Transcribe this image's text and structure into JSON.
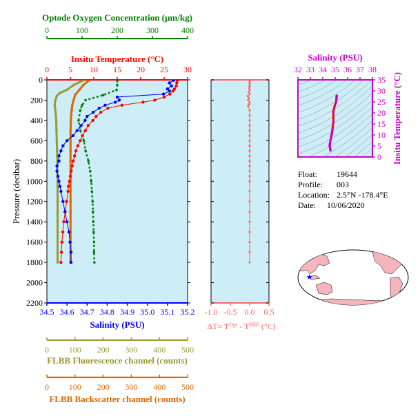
{
  "colors": {
    "panel_bg": "#cdeef7",
    "salinity": "#0000ff",
    "temperature": "#ff0000",
    "oxygen": "#008000",
    "fluorescence": "#999933",
    "backscatter": "#dd6600",
    "delta_t": "#ff6666",
    "ts_axis": "#cc00cc",
    "ts_line": "#ff0000",
    "land": "#f4b6bc",
    "float_marker": "#0000ff"
  },
  "info": {
    "float_label": "Float:",
    "float_value": "19644",
    "profile_label": "Profile:",
    "profile_value": "003",
    "location_label": "Location:",
    "location_value": "2.5°N  -178.4°E",
    "date_label": "Date:",
    "date_value": "10/06/2020"
  },
  "chart_data": [
    {
      "type": "line",
      "title": "",
      "ylabel": "Pressure (decibar)",
      "ylim": [
        2200,
        0
      ],
      "yticks": [
        "0",
        "200",
        "400",
        "600",
        "800",
        "1000",
        "1200",
        "1400",
        "1600",
        "1800",
        "2000",
        "2200"
      ],
      "axes": {
        "salinity": {
          "label": "Salinity (PSU)",
          "range": [
            34.5,
            35.2
          ],
          "ticks": [
            "34.5",
            "34.6",
            "34.7",
            "34.8",
            "34.9",
            "35.0",
            "35.1",
            "35.2"
          ]
        },
        "temperature": {
          "label": "Insitu Temperature (°C)",
          "range": [
            0,
            30
          ],
          "ticks": [
            "0",
            "5",
            "10",
            "15",
            "20",
            "25",
            "30"
          ]
        },
        "oxygen": {
          "label": "Optode Oxygen Concentration (µm/kg)",
          "range": [
            0,
            400
          ],
          "ticks": [
            "0",
            "100",
            "200",
            "300",
            "400"
          ]
        },
        "fluorescence": {
          "label": "FLBB Fluorescence channel (counts)",
          "range": [
            0,
            500
          ],
          "ticks": [
            "0",
            "100",
            "200",
            "300",
            "400",
            "500"
          ]
        },
        "backscatter": {
          "label": "FLBB Backscatter channel (counts)",
          "range": [
            0,
            500
          ],
          "ticks": [
            "0",
            "100",
            "200",
            "300",
            "400",
            "500"
          ]
        }
      },
      "series": [
        {
          "key": "salinity",
          "pressure": [
            5,
            30,
            60,
            90,
            110,
            140,
            170,
            200,
            220,
            250,
            280,
            320,
            360,
            400,
            450,
            500,
            550,
            600,
            650,
            700,
            750,
            800,
            850,
            900,
            950,
            1000,
            1050,
            1100,
            1200,
            1300,
            1400,
            1500,
            1600,
            1700,
            1800
          ],
          "values": [
            35.13,
            35.11,
            35.12,
            35.1,
            35.11,
            35.08,
            34.85,
            34.86,
            34.84,
            34.79,
            34.76,
            34.73,
            34.7,
            34.69,
            34.67,
            34.65,
            34.63,
            34.6,
            34.58,
            34.57,
            34.56,
            34.56,
            34.55,
            34.55,
            34.555,
            34.56,
            34.565,
            34.57,
            34.58,
            34.59,
            34.6,
            34.61,
            34.615,
            34.62,
            34.62
          ]
        },
        {
          "key": "temperature",
          "pressure": [
            5,
            30,
            60,
            90,
            110,
            140,
            170,
            200,
            220,
            250,
            280,
            320,
            360,
            400,
            450,
            500,
            550,
            600,
            650,
            700,
            750,
            800,
            850,
            900,
            950,
            1000,
            1050,
            1100,
            1200,
            1300,
            1400,
            1500,
            1600,
            1700,
            1800
          ],
          "values": [
            27.8,
            27.7,
            27.6,
            27.2,
            26.9,
            26.2,
            25.0,
            23.0,
            20.5,
            16.0,
            13.0,
            11.5,
            10.5,
            9.8,
            8.8,
            8.2,
            7.6,
            7.1,
            6.6,
            6.2,
            5.9,
            5.6,
            5.4,
            5.2,
            5.0,
            4.8,
            4.6,
            4.5,
            4.2,
            3.9,
            3.6,
            3.4,
            3.2,
            3.1,
            3.0
          ]
        },
        {
          "key": "oxygen",
          "pressure": [
            5,
            50,
            100,
            150,
            200,
            250,
            300,
            400,
            500,
            600,
            700,
            800,
            900,
            1000,
            1100,
            1200,
            1300,
            1400,
            1500,
            1600,
            1700,
            1800
          ],
          "values": [
            200,
            200,
            198,
            160,
            110,
            100,
            95,
            90,
            95,
            105,
            110,
            118,
            123,
            126,
            128,
            130,
            131,
            132,
            133,
            134,
            134,
            135
          ]
        },
        {
          "key": "fluorescence",
          "pressure": [
            5,
            50,
            100,
            130,
            160,
            200,
            250,
            300,
            350,
            400,
            500,
            600,
            700,
            800,
            900,
            1000,
            1100,
            1200,
            1300,
            1400,
            1500,
            1600,
            1700,
            1800
          ],
          "values": [
            130,
            95,
            70,
            45,
            35,
            30,
            28,
            30,
            32,
            33,
            34,
            35,
            36,
            37,
            37,
            38,
            38,
            38,
            38,
            38,
            38,
            38,
            38,
            38
          ]
        },
        {
          "key": "backscatter",
          "pressure": [
            5,
            50,
            100,
            150,
            200,
            250,
            300,
            350,
            400,
            500,
            600,
            700,
            800,
            900,
            1000,
            1100,
            1200,
            1300,
            1400,
            1500,
            1600,
            1700,
            1800
          ],
          "values": [
            150,
            130,
            115,
            100,
            95,
            90,
            88,
            86,
            85,
            84,
            84,
            84,
            84,
            84,
            84,
            84,
            84,
            84,
            84,
            84,
            84,
            84,
            84
          ]
        }
      ]
    },
    {
      "type": "scatter",
      "title": "",
      "xlabel": "ΔT= T^Opt - T^SBE (°C)",
      "xlabel_parts": {
        "prefix": "ΔT= T",
        "sup1": "Opt",
        "mid": " - T",
        "sup2": "SBE",
        "suffix": " (°C)"
      },
      "xlim": [
        -1.0,
        0.5
      ],
      "xticks": [
        "-1.0",
        "-0.5",
        "0.0",
        "0.5"
      ],
      "ylim": [
        2200,
        0
      ],
      "series": [
        {
          "name": "",
          "pressure": [
            5,
            20,
            40,
            60,
            80,
            100,
            120,
            140,
            160,
            180,
            200,
            220,
            240,
            260,
            300,
            350,
            400,
            450,
            500,
            550,
            600,
            650,
            700,
            750,
            800,
            850,
            900,
            950,
            1000,
            1100,
            1200,
            1300,
            1400,
            1500,
            1600,
            1700,
            1800
          ],
          "values": [
            0.0,
            0.0,
            0.0,
            0.0,
            -0.01,
            0.0,
            -0.02,
            0.0,
            -0.05,
            -0.02,
            -0.04,
            0.0,
            -0.01,
            -0.04,
            0.0,
            0.0,
            0.0,
            0.0,
            0.0,
            0.0,
            0.0,
            0.0,
            0.0,
            0.0,
            0.0,
            0.0,
            0.0,
            0.0,
            0.0,
            0.0,
            0.0,
            0.0,
            0.0,
            0.0,
            0.0,
            0.0,
            0.0
          ]
        }
      ]
    },
    {
      "type": "line",
      "title": "",
      "xlabel": "Salinity (PSU)",
      "ylabel": "Insitu Temperature (°C)",
      "xlim": [
        32,
        38
      ],
      "ylim": [
        0,
        35
      ],
      "xticks": [
        "32",
        "33",
        "34",
        "35",
        "36",
        "37",
        "38"
      ],
      "yticks": [
        "0",
        "5",
        "10",
        "15",
        "20",
        "25",
        "30",
        "35"
      ],
      "series": [
        {
          "name": "",
          "salinity": [
            35.13,
            35.11,
            35.1,
            35.08,
            34.95,
            34.85,
            34.86,
            34.79,
            34.76,
            34.73,
            34.7,
            34.67,
            34.63,
            34.6,
            34.57,
            34.56,
            34.56,
            34.6,
            34.62
          ],
          "temperature": [
            27.8,
            27.2,
            26.2,
            25.0,
            23.0,
            20.5,
            16.0,
            13.0,
            11.5,
            10.5,
            9.8,
            8.8,
            7.6,
            6.6,
            5.9,
            5.4,
            4.8,
            3.6,
            3.0
          ]
        }
      ]
    },
    {
      "type": "map",
      "title": "",
      "marker": {
        "lat": 2.5,
        "lon": -178.4
      }
    }
  ]
}
